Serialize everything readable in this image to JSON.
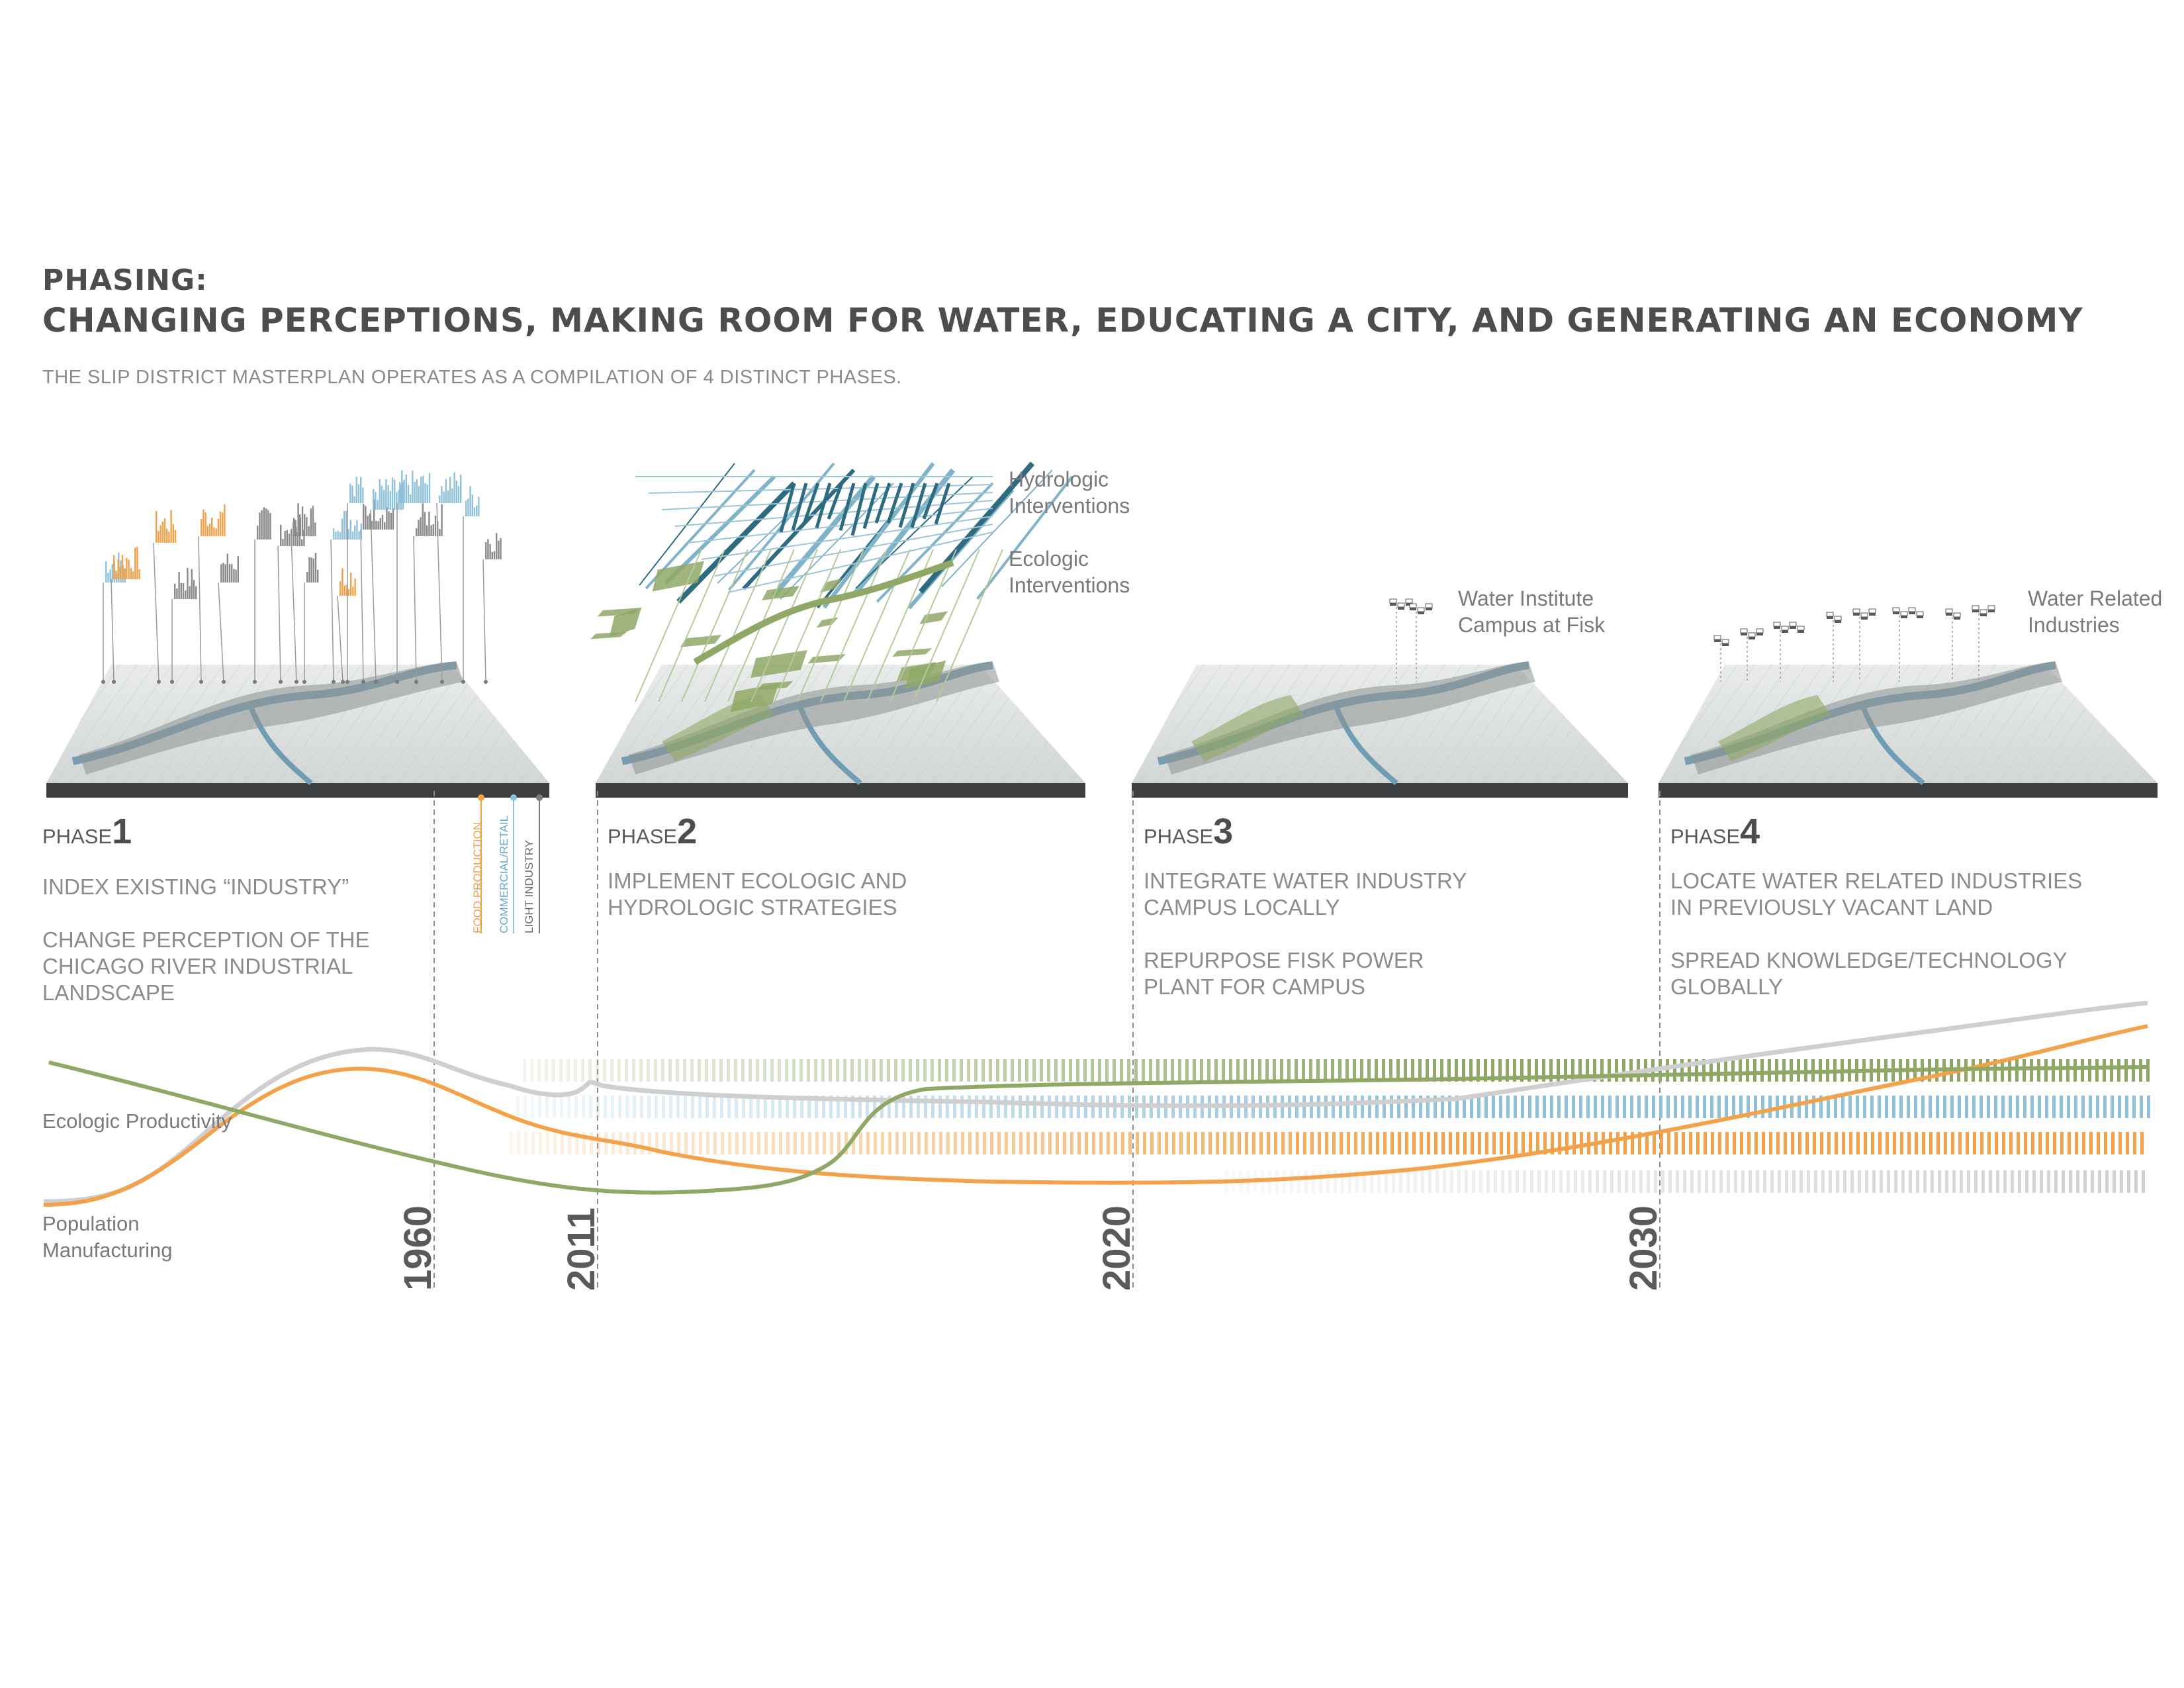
{
  "header": {
    "title_line1": "PHASING:",
    "title_line2": "CHANGING PERCEPTIONS, MAKING ROOM FOR WATER, EDUCATING A CITY, AND GENERATING AN ECONOMY",
    "subtitle": "THE SLIP DISTRICT MASTERPLAN OPERATES AS A COMPILATION OF 4 DISTINCT PHASES."
  },
  "phases": [
    {
      "prefix": "PHASE",
      "number": "1",
      "lines": [
        "INDEX EXISTING “INDUSTRY”"
      ],
      "lines2": [
        "CHANGE PERCEPTION OF THE",
        "CHICAGO RIVER INDUSTRIAL",
        "LANDSCAPE"
      ]
    },
    {
      "prefix": "PHASE",
      "number": "2",
      "lines": [
        "IMPLEMENT ECOLOGIC  AND",
        "HYDROLOGIC STRATEGIES"
      ],
      "lines2": []
    },
    {
      "prefix": "PHASE",
      "number": "3",
      "lines": [
        "INTEGRATE WATER INDUSTRY",
        "CAMPUS LOCALLY"
      ],
      "lines2": [
        "REPURPOSE FISK POWER",
        "PLANT FOR CAMPUS"
      ]
    },
    {
      "prefix": "PHASE",
      "number": "4",
      "lines": [
        "LOCATE WATER RELATED INDUSTRIES",
        "IN PREVIOUSLY VACANT LAND"
      ],
      "lines2": [
        "SPREAD KNOWLEDGE/TECHNOLOGY",
        "GLOBALLY"
      ]
    }
  ],
  "annotations": {
    "hydrologic": [
      "Hydrologic",
      "Interventions"
    ],
    "ecologic": [
      "Ecologic",
      "Interventions"
    ],
    "water_institute": [
      "Water Institute",
      "Campus at Fisk"
    ],
    "water_related": [
      "Water Related",
      "Industries"
    ]
  },
  "legend": {
    "food": "FOOD PRODUCTION",
    "commercial": "COMMERCIAL/RETAIL",
    "light": "LIGHT INDUSTRY"
  },
  "timeline": {
    "years": [
      "1960",
      "2011",
      "2020",
      "2030"
    ],
    "labels": {
      "ecologic": "Ecologic Productivity",
      "population": "Population",
      "manufacturing": "Manufacturing"
    }
  },
  "colors": {
    "orange": "#f3a249",
    "blue": "#8fc1d9",
    "green": "#8fa866",
    "gray": "#cfcfcf",
    "dark": "#4d4d4f"
  }
}
